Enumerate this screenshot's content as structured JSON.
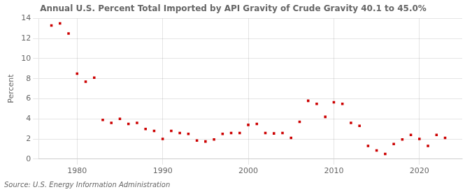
{
  "chart_data": {
    "type": "scatter",
    "title": "Annual U.S. Percent Total Imported by API Gravity of Crude Gravity 40.1 to 45.0%",
    "y_label": "Percent",
    "annotations": [
      "Source: U.S. Energy Information Administration"
    ],
    "x": [
      1977,
      1978,
      1979,
      1980,
      1981,
      1982,
      1983,
      1984,
      1985,
      1986,
      1987,
      1988,
      1989,
      1990,
      1991,
      1992,
      1993,
      1994,
      1995,
      1996,
      1997,
      1998,
      1999,
      2000,
      2001,
      2002,
      2003,
      2004,
      2005,
      2006,
      2007,
      2008,
      2009,
      2010,
      2011,
      2012,
      2013,
      2014,
      2015,
      2016,
      2017,
      2018,
      2019,
      2020,
      2021,
      2022,
      2023
    ],
    "values": [
      13.3,
      13.5,
      12.5,
      8.5,
      7.7,
      8.1,
      3.9,
      3.6,
      4.0,
      3.5,
      3.6,
      3.0,
      2.8,
      2.0,
      2.8,
      2.6,
      2.5,
      1.85,
      1.75,
      1.95,
      2.5,
      2.6,
      2.6,
      3.4,
      3.5,
      2.6,
      2.55,
      2.6,
      2.1,
      3.7,
      5.8,
      5.5,
      4.2,
      5.65,
      5.5,
      3.6,
      3.3,
      1.3,
      0.85,
      0.5,
      1.5,
      1.95,
      2.4,
      2.0,
      1.3,
      2.4,
      2.1
    ],
    "color": "#cc0000",
    "marker": "square",
    "xlim": [
      1975.5,
      2025
    ],
    "xticks": [
      1980,
      1990,
      2000,
      2010,
      2020
    ],
    "ylim": [
      0,
      14
    ],
    "yticks": [
      0,
      2,
      4,
      6,
      8,
      10,
      12,
      14
    ],
    "grid": true
  }
}
